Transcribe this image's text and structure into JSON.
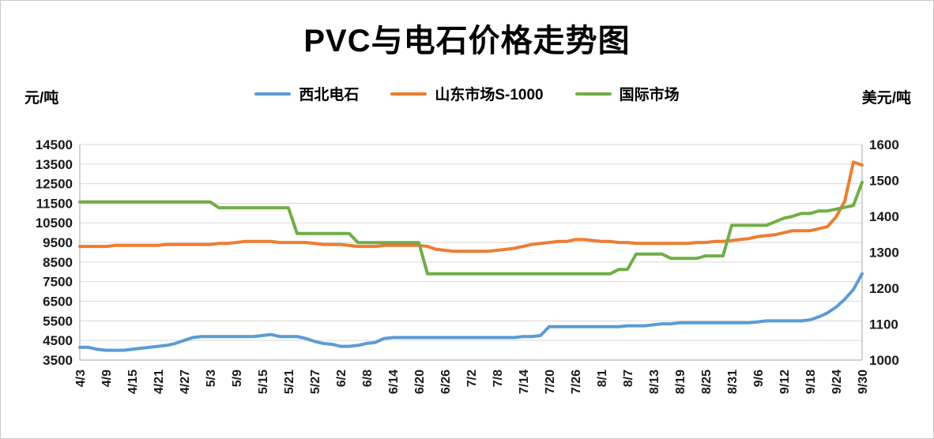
{
  "title": "PVC与电石价格走势图",
  "axis_units": {
    "left": "元/吨",
    "right": "美元/吨"
  },
  "chart_data": {
    "type": "line",
    "title": "PVC与电石价格走势图",
    "grid": true,
    "legend_position": "top",
    "label_interval": 3,
    "n_points": 91,
    "x_labels": [
      "4/3",
      "4/9",
      "4/15",
      "4/21",
      "4/27",
      "5/3",
      "5/9",
      "5/15",
      "5/21",
      "5/27",
      "6/2",
      "6/8",
      "6/14",
      "6/20",
      "6/26",
      "7/2",
      "7/8",
      "7/14",
      "7/20",
      "7/26",
      "8/1",
      "8/7",
      "8/13",
      "8/19",
      "8/25",
      "8/31",
      "9/6",
      "9/12",
      "9/18",
      "9/24",
      "9/30"
    ],
    "left_axis": {
      "unit": "元/吨",
      "min": 3500,
      "max": 14500,
      "step": 1000,
      "ticks": [
        "3500",
        "4500",
        "5500",
        "6500",
        "7500",
        "8500",
        "9500",
        "10500",
        "11500",
        "12500",
        "13500",
        "14500"
      ]
    },
    "right_axis": {
      "unit": "美元/吨",
      "min": 1000,
      "max": 1600,
      "step": 100,
      "ticks": [
        "1000",
        "1100",
        "1200",
        "1300",
        "1400",
        "1500",
        "1600"
      ]
    },
    "series": [
      {
        "name": "西北电石",
        "axis": "left",
        "color": "#5B9BD5",
        "values": [
          4150,
          4150,
          4050,
          4000,
          4000,
          4000,
          4050,
          4100,
          4150,
          4200,
          4250,
          4350,
          4500,
          4650,
          4700,
          4700,
          4700,
          4700,
          4700,
          4700,
          4700,
          4750,
          4800,
          4700,
          4700,
          4700,
          4600,
          4450,
          4350,
          4300,
          4200,
          4200,
          4250,
          4350,
          4400,
          4600,
          4650,
          4650,
          4650,
          4650,
          4650,
          4650,
          4650,
          4650,
          4650,
          4650,
          4650,
          4650,
          4650,
          4650,
          4650,
          4700,
          4700,
          4750,
          5200,
          5200,
          5200,
          5200,
          5200,
          5200,
          5200,
          5200,
          5200,
          5250,
          5250,
          5250,
          5300,
          5350,
          5350,
          5400,
          5400,
          5400,
          5400,
          5400,
          5400,
          5400,
          5400,
          5400,
          5450,
          5500,
          5500,
          5500,
          5500,
          5500,
          5550,
          5700,
          5900,
          6200,
          6600,
          7100,
          7900
        ]
      },
      {
        "name": "山东市场S-1000",
        "axis": "left",
        "color": "#ED7D31",
        "values": [
          9300,
          9300,
          9300,
          9300,
          9350,
          9350,
          9350,
          9350,
          9350,
          9350,
          9400,
          9400,
          9400,
          9400,
          9400,
          9400,
          9450,
          9450,
          9500,
          9550,
          9550,
          9550,
          9550,
          9500,
          9500,
          9500,
          9500,
          9450,
          9400,
          9400,
          9400,
          9350,
          9300,
          9300,
          9300,
          9350,
          9350,
          9350,
          9350,
          9350,
          9300,
          9150,
          9100,
          9050,
          9050,
          9050,
          9050,
          9050,
          9100,
          9150,
          9200,
          9300,
          9400,
          9450,
          9500,
          9550,
          9550,
          9650,
          9650,
          9600,
          9550,
          9550,
          9500,
          9500,
          9450,
          9450,
          9450,
          9450,
          9450,
          9450,
          9450,
          9500,
          9500,
          9550,
          9550,
          9600,
          9650,
          9700,
          9800,
          9850,
          9900,
          10000,
          10100,
          10100,
          10100,
          10200,
          10300,
          10800,
          11600,
          13600,
          13450
        ]
      },
      {
        "name": "国际市场",
        "axis": "right",
        "color": "#70AD47",
        "values": [
          1440,
          1440,
          1440,
          1440,
          1440,
          1440,
          1440,
          1440,
          1440,
          1440,
          1440,
          1440,
          1440,
          1440,
          1440,
          1440,
          1424,
          1424,
          1424,
          1424,
          1424,
          1424,
          1424,
          1424,
          1424,
          1352,
          1352,
          1352,
          1352,
          1352,
          1352,
          1352,
          1327,
          1327,
          1327,
          1327,
          1327,
          1327,
          1327,
          1327,
          1240,
          1240,
          1240,
          1240,
          1240,
          1240,
          1240,
          1240,
          1240,
          1240,
          1240,
          1240,
          1240,
          1240,
          1240,
          1240,
          1240,
          1240,
          1240,
          1240,
          1240,
          1240,
          1252,
          1252,
          1295,
          1295,
          1295,
          1295,
          1283,
          1283,
          1283,
          1283,
          1290,
          1290,
          1290,
          1375,
          1375,
          1375,
          1375,
          1375,
          1385,
          1395,
          1400,
          1408,
          1408,
          1415,
          1415,
          1420,
          1425,
          1430,
          1495
        ]
      }
    ]
  }
}
